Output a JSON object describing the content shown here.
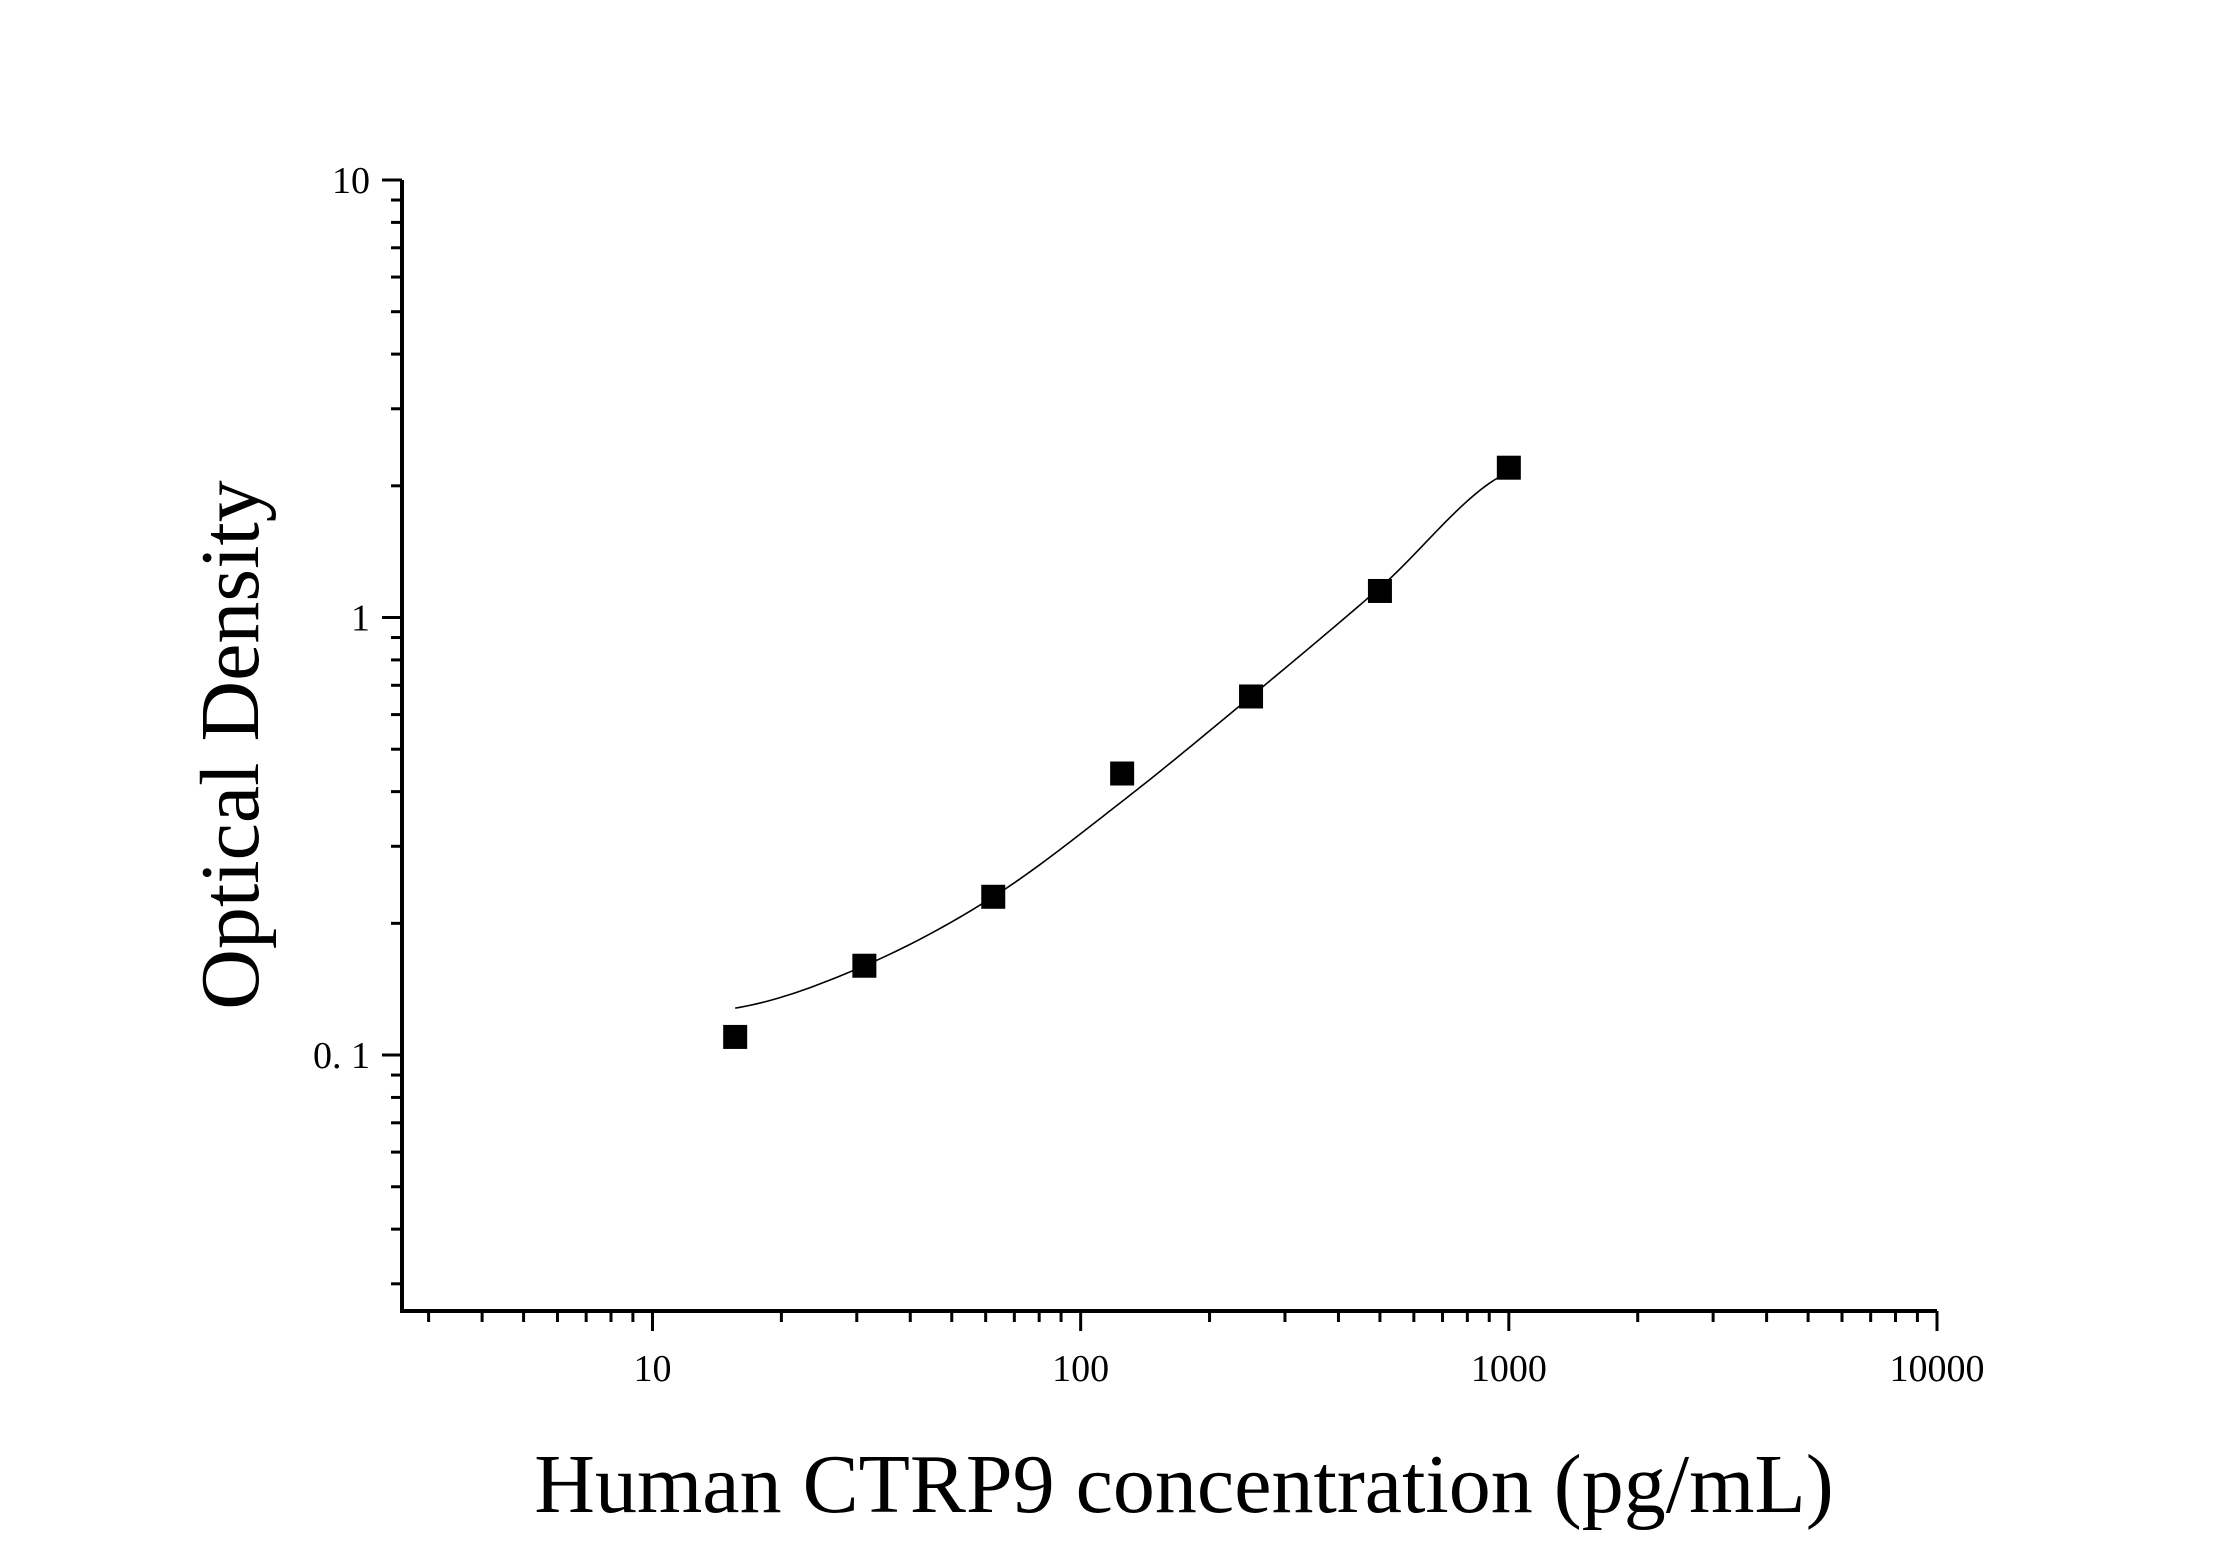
{
  "chart_data": {
    "type": "scatter",
    "title": "",
    "xlabel": "Human CTRP9 concentration (pg/mL)",
    "ylabel": "Optical Density",
    "x_scale": "log",
    "y_scale": "log",
    "xlim": [
      2.6,
      10000
    ],
    "ylim": [
      0.026,
      10
    ],
    "x_tick_labels": [
      "10",
      "100",
      "1000",
      "10000"
    ],
    "y_tick_labels": [
      "0. 1",
      "1",
      "10"
    ],
    "grid": false,
    "legend": "none",
    "series": [
      {
        "x": [
          15.6,
          31.25,
          62.5,
          125,
          250,
          500,
          1000
        ],
        "y": [
          0.11,
          0.16,
          0.23,
          0.44,
          0.66,
          1.15,
          2.2
        ]
      }
    ],
    "fit_curve": {
      "x": [
        15.6,
        31.25,
        62.5,
        125,
        250,
        500,
        1000
      ],
      "y": [
        0.128,
        0.16,
        0.23,
        0.38,
        0.66,
        1.17,
        2.15
      ]
    },
    "colors": {
      "marks": "#000000",
      "background": "#ffffff"
    }
  }
}
